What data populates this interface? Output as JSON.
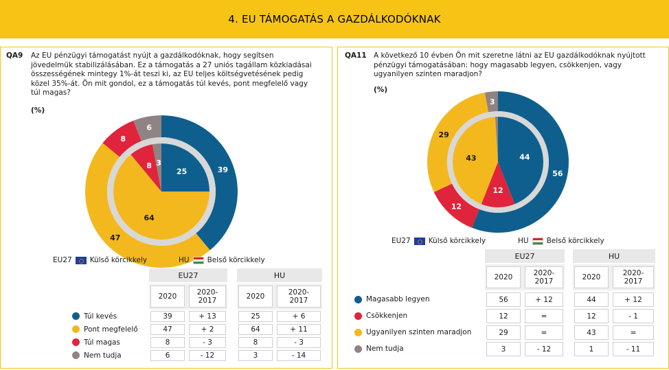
{
  "title": "4. EU TÁMOGATÁS A GAZDÁLKODÓKNAK",
  "colors": {
    "navy": "#0f5f8e",
    "red": "#e0243b",
    "yellow": "#f4b81f",
    "grey": "#8f8384",
    "header": "#f7c416"
  },
  "legend": {
    "eu27": "EU27",
    "outer": "Külső körcikkely",
    "hu": "HU",
    "inner": "Belső körcikkely"
  },
  "table_headers": {
    "eu27": "EU27",
    "hu": "HU",
    "y2020": "2020",
    "diff": "2020-\n2017"
  },
  "chart_data": [
    {
      "type": "pie",
      "id": "QA9",
      "code": "QA9",
      "question": "Az EU pénzügyi támogatást nyújt a gazdálkodóknak, hogy segítsen jövedelmük stabilizálásában. Ez a támogatás a 27 uniós tagállam közkiadásai összességének mintegy 1%-át teszi ki, az EU teljes költségvetésének pedig közel 35%-át. Ön mit gondol, ez a támogatás túl kevés, pont megfelelő vagy túl magas?",
      "unit": "(%)",
      "categories": [
        "Túl kevés",
        "Pont megfelelő",
        "Túl magas",
        "Nem tudja"
      ],
      "category_colors": [
        "#0f5f8e",
        "#f4b81f",
        "#e0243b",
        "#8f8384"
      ],
      "series": [
        {
          "name": "EU27",
          "ring": "outer",
          "values": [
            39,
            47,
            8,
            6
          ],
          "diff": [
            "+ 13",
            "+ 2",
            "- 3",
            "- 12"
          ]
        },
        {
          "name": "HU",
          "ring": "inner",
          "values": [
            25,
            64,
            8,
            3
          ],
          "diff": [
            "+ 6",
            "+ 11",
            "- 3",
            "- 14"
          ]
        }
      ]
    },
    {
      "type": "pie",
      "id": "QA11",
      "code": "QA11",
      "question": "A következő 10 évben Ön mit szeretne látni az EU gazdálkodóknak nyújtott pénzügyi támogatásában: hogy magasabb legyen, csökkenjen, vagy ugyanilyen szinten maradjon?",
      "unit": "(%)",
      "categories": [
        "Magasabb legyen",
        "Csökkenjen",
        "Ugyanilyen szinten maradjon",
        "Nem tudja"
      ],
      "category_colors": [
        "#0f5f8e",
        "#e0243b",
        "#f4b81f",
        "#8f8384"
      ],
      "series": [
        {
          "name": "EU27",
          "ring": "outer",
          "values": [
            56,
            12,
            29,
            3
          ],
          "diff": [
            "+ 12",
            "=",
            "=",
            "- 12"
          ]
        },
        {
          "name": "HU",
          "ring": "inner",
          "values": [
            44,
            12,
            43,
            1
          ],
          "diff": [
            "+ 12",
            "- 1",
            "=",
            "- 11"
          ]
        }
      ]
    }
  ]
}
